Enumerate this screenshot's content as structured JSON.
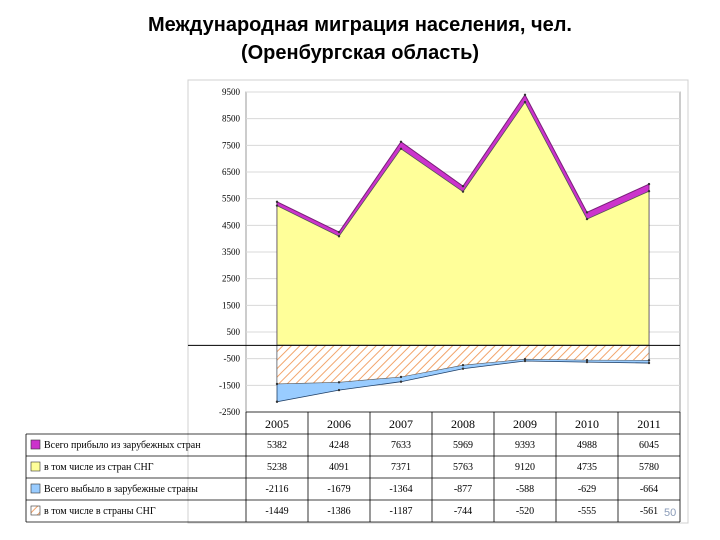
{
  "title_line1": "Международная миграция населения, чел.",
  "title_line2": "(Оренбургская область)",
  "page_number": "50",
  "chart_data": {
    "type": "area",
    "categories": [
      "2005",
      "2006",
      "2007",
      "2008",
      "2009",
      "2010",
      "2011"
    ],
    "ylim": [
      -2500,
      9500
    ],
    "yticks": [
      9500,
      8500,
      7500,
      6500,
      5500,
      4500,
      3500,
      2500,
      1500,
      500,
      -500,
      -1500,
      -2500
    ],
    "grid": true,
    "legend": "table-left",
    "series": [
      {
        "name": "Всего прибыло из зарубежных стран",
        "color": "#cc33cc",
        "values": [
          5382,
          4248,
          7633,
          5969,
          9393,
          4988,
          6045
        ],
        "labels": [
          "5382",
          "4248",
          "7633",
          "5969",
          "9393",
          "4988",
          "6045"
        ]
      },
      {
        "name": "в том числе из стран СНГ",
        "color": "#ffff99",
        "values": [
          5238,
          4091,
          7371,
          5763,
          9120,
          4735,
          5780
        ],
        "labels": [
          "5238",
          "4091",
          "7371",
          "5763",
          "9120",
          "4735",
          "5780"
        ]
      },
      {
        "name": "Всего выбыло в зарубежные страны",
        "color": "#99ccff",
        "values": [
          -2116,
          -1679,
          -1364,
          -877,
          -588,
          -629,
          -664
        ],
        "labels": [
          "-2116",
          "-1679",
          "-1364",
          "-877",
          "-588",
          "-629",
          "-664"
        ]
      },
      {
        "name": "в том числе в страны СНГ",
        "color": "#fcd5b4",
        "values": [
          -1449,
          -1386,
          -1187,
          -744,
          -520,
          -555,
          -561
        ],
        "labels": [
          "-1449",
          "-1386",
          "-1187",
          "-744",
          "-520",
          "-555",
          "-561"
        ]
      }
    ]
  }
}
